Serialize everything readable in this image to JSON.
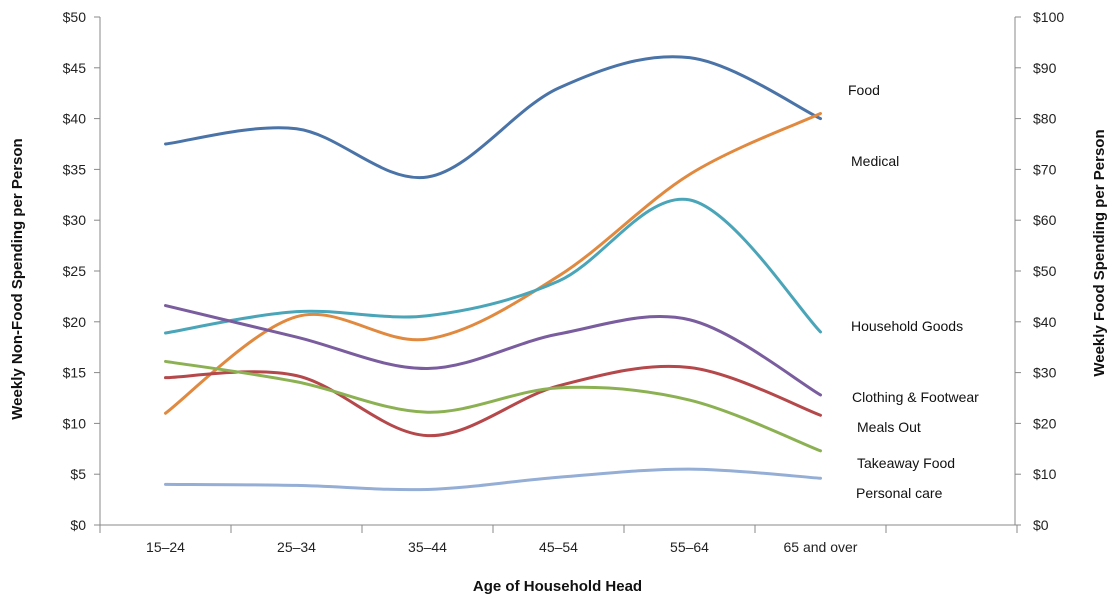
{
  "chart_data": {
    "type": "line",
    "smooth": true,
    "grid": false,
    "xlabel": "Age of Household Head",
    "ylabel": "Weekly Non-Food  Spending per Person",
    "y2label": "Weekly Food  Spending per Person",
    "ylim": [
      0,
      50
    ],
    "y2lim": [
      0,
      100
    ],
    "y_ticks": [
      "$0",
      "$5",
      "$10",
      "$15",
      "$20",
      "$25",
      "$30",
      "$35",
      "$40",
      "$45",
      "$50"
    ],
    "y2_ticks": [
      "$0",
      "$10",
      "$20",
      "$30",
      "$40",
      "$50",
      "$60",
      "$70",
      "$80",
      "$90",
      "$100"
    ],
    "categories": [
      "15–24",
      "25–34",
      "35–44",
      "45–54",
      "55–64",
      "65 and over"
    ],
    "series": [
      {
        "name": "Food",
        "axis": "right",
        "color": "#4a73a8",
        "values": [
          75,
          78,
          68.5,
          86,
          92,
          80
        ]
      },
      {
        "name": "Medical",
        "axis": "left",
        "color": "#e0893f",
        "values": [
          11,
          20.5,
          18.3,
          24.5,
          34.5,
          40.5
        ]
      },
      {
        "name": "Household Goods",
        "axis": "left",
        "color": "#4aa5b8",
        "values": [
          18.9,
          21,
          20.6,
          24,
          32,
          19
        ]
      },
      {
        "name": "Clothing & Footwear",
        "axis": "left",
        "color": "#7a5d9e",
        "values": [
          21.6,
          18.5,
          15.4,
          18.8,
          20.2,
          12.8
        ]
      },
      {
        "name": "Meals Out",
        "axis": "left",
        "color": "#b5484a",
        "values": [
          14.5,
          14.7,
          8.8,
          13.7,
          15.5,
          10.8
        ]
      },
      {
        "name": "Takeaway Food",
        "axis": "left",
        "color": "#8cb153",
        "values": [
          16.1,
          14.1,
          11.1,
          13.5,
          12.3,
          7.3
        ]
      },
      {
        "name": "Personal care",
        "axis": "left",
        "color": "#95aed6",
        "values": [
          4,
          3.9,
          3.5,
          4.7,
          5.5,
          4.6
        ]
      }
    ]
  }
}
